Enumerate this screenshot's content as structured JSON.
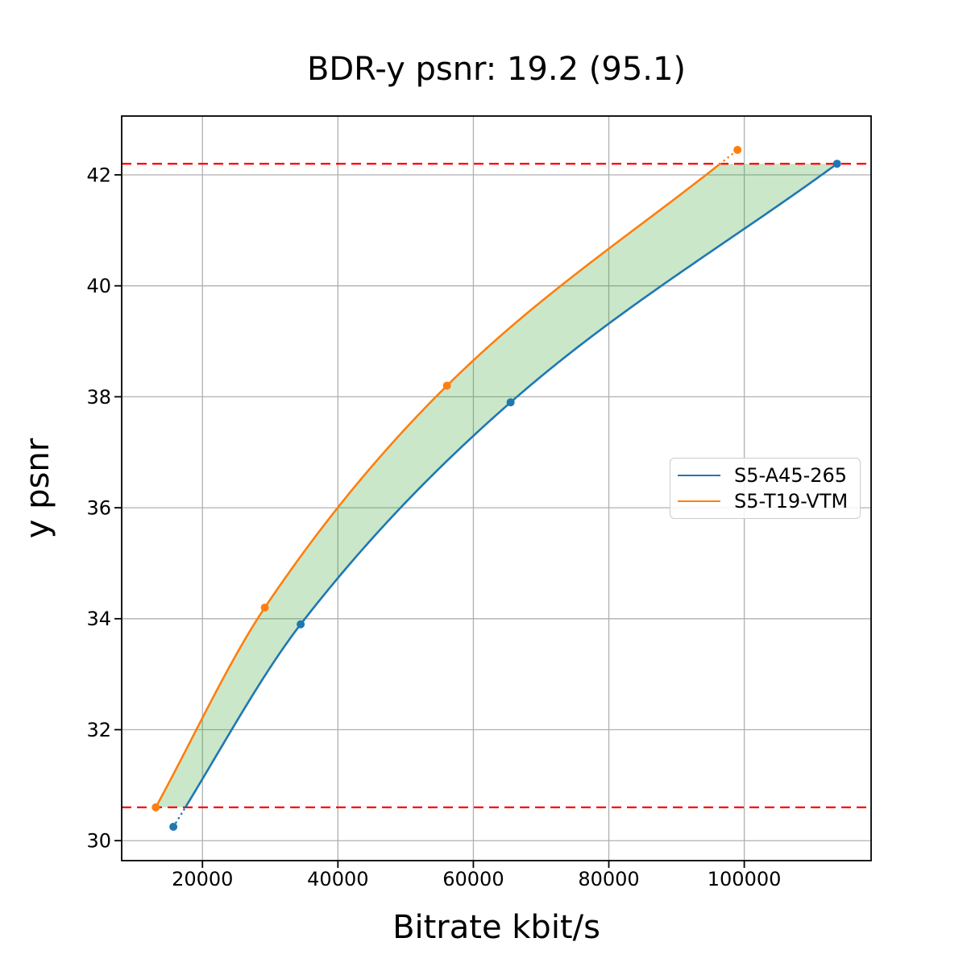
{
  "chart_data": {
    "type": "line",
    "title": "BDR-y psnr: 19.2 (95.1)",
    "xlabel": "Bitrate kbit/s",
    "ylabel": "y psnr",
    "xlim": [
      8070,
      118730
    ],
    "ylim": [
      29.64,
      43.06
    ],
    "x_ticks": [
      20000,
      40000,
      60000,
      80000,
      100000
    ],
    "y_ticks": [
      30,
      32,
      34,
      36,
      38,
      40,
      42
    ],
    "grid": true,
    "grid_color": "#b0b0b0",
    "legend_position": "center right",
    "series": [
      {
        "name": "S5-A45-265",
        "color": "#1f77b4",
        "marker": "circle",
        "points": [
          [
            15700,
            30.25
          ],
          [
            34500,
            33.9
          ],
          [
            65500,
            37.9
          ],
          [
            113700,
            42.2
          ]
        ]
      },
      {
        "name": "S5-T19-VTM",
        "color": "#ff7f0e",
        "marker": "circle",
        "points": [
          [
            13100,
            30.6
          ],
          [
            29200,
            34.2
          ],
          [
            56100,
            38.2
          ],
          [
            99000,
            42.45
          ]
        ]
      }
    ],
    "overlap_band": {
      "lower_psnr": 30.6,
      "upper_psnr": 42.2,
      "line_color": "#ff0000",
      "line_style": "dashed",
      "fill_color": "#2ca02c",
      "fill_opacity": 0.25
    },
    "extrapolation_style": "dotted"
  }
}
